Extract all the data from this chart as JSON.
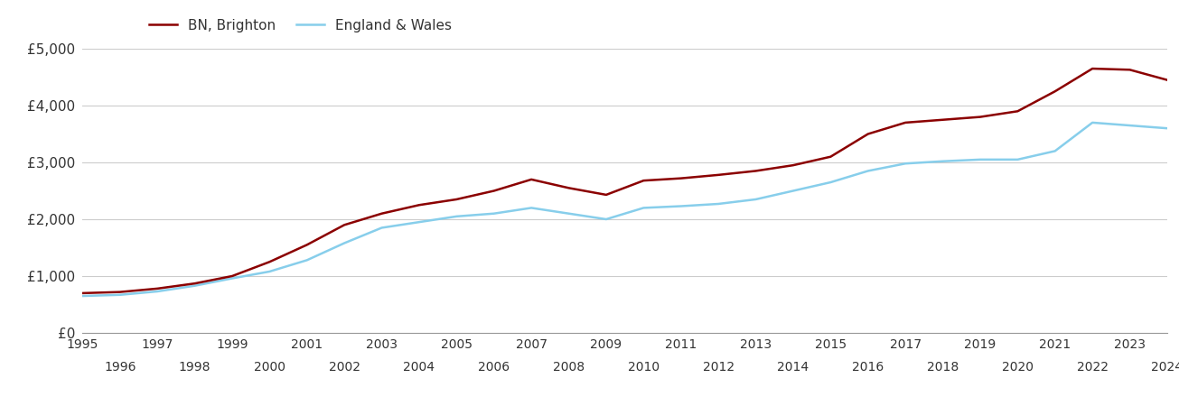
{
  "years": [
    1995,
    1996,
    1997,
    1998,
    1999,
    2000,
    2001,
    2002,
    2003,
    2004,
    2005,
    2006,
    2007,
    2008,
    2009,
    2010,
    2011,
    2012,
    2013,
    2014,
    2015,
    2016,
    2017,
    2018,
    2019,
    2020,
    2021,
    2022,
    2023,
    2024
  ],
  "brighton": [
    700,
    720,
    780,
    870,
    1000,
    1250,
    1550,
    1900,
    2100,
    2250,
    2350,
    2500,
    2700,
    2550,
    2430,
    2680,
    2720,
    2780,
    2850,
    2950,
    3100,
    3500,
    3700,
    3750,
    3800,
    3900,
    4250,
    4650,
    4630,
    4450
  ],
  "england_wales": [
    650,
    670,
    730,
    830,
    960,
    1080,
    1280,
    1580,
    1850,
    1950,
    2050,
    2100,
    2200,
    2100,
    2000,
    2200,
    2230,
    2270,
    2350,
    2500,
    2650,
    2850,
    2980,
    3020,
    3050,
    3050,
    3200,
    3700,
    3650,
    3600
  ],
  "brighton_color": "#8B0000",
  "england_wales_color": "#87CEEB",
  "legend_brighton": "BN, Brighton",
  "legend_england": "England & Wales",
  "ylim": [
    0,
    5000
  ],
  "yticks": [
    0,
    1000,
    2000,
    3000,
    4000,
    5000
  ],
  "ytick_labels": [
    "£0",
    "£1,000",
    "£2,000",
    "£3,000",
    "£4,000",
    "£5,000"
  ],
  "background_color": "#ffffff",
  "grid_color": "#cccccc",
  "line_width": 1.8,
  "font_color": "#333333",
  "odd_years": [
    1995,
    1997,
    1999,
    2001,
    2003,
    2005,
    2007,
    2009,
    2011,
    2013,
    2015,
    2017,
    2019,
    2021,
    2023
  ],
  "even_years": [
    1996,
    1998,
    2000,
    2002,
    2004,
    2006,
    2008,
    2010,
    2012,
    2014,
    2016,
    2018,
    2020,
    2022,
    2024
  ]
}
